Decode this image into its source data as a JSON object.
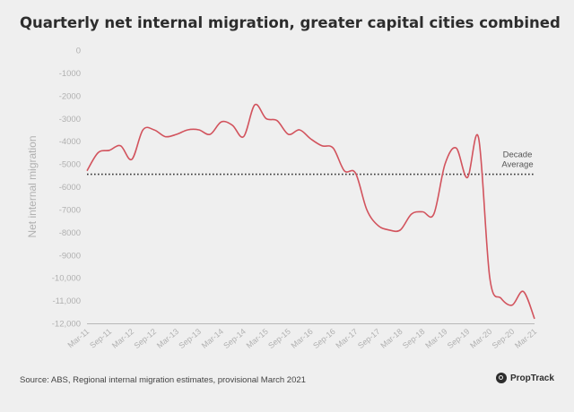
{
  "chart_data": {
    "type": "line",
    "title": "Quarterly net internal migration, greater capital cities combined",
    "ylabel": "Net internal migration",
    "xlabel": "",
    "ylim": [
      -12000,
      0
    ],
    "yticks": [
      0,
      -1000,
      -2000,
      -3000,
      -4000,
      -5000,
      -6000,
      -7000,
      -8000,
      -9000,
      -10000,
      -11000,
      -12000
    ],
    "ytick_labels": [
      "0",
      "-1000",
      "-2000",
      "-3000",
      "-4000",
      "-5000",
      "-6000",
      "-7000",
      "-8000",
      "-9000",
      "-10,000",
      "-11,000",
      "-12,000"
    ],
    "xtick_labels": [
      "Mar-11",
      "Sep-11",
      "Mar-12",
      "Sep-12",
      "Mar-13",
      "Sep-13",
      "Mar-14",
      "Sep-14",
      "Mar-15",
      "Sep-15",
      "Mar-16",
      "Sep-16",
      "Mar-17",
      "Sep-17",
      "Mar-18",
      "Sep-18",
      "Mar-19",
      "Sep-19",
      "Mar-20",
      "Sep-20",
      "Mar-21"
    ],
    "grid": false,
    "series": [
      {
        "color": "#d2535d",
        "x": [
          "Mar-11",
          "Jun-11",
          "Sep-11",
          "Dec-11",
          "Mar-12",
          "Jun-12",
          "Sep-12",
          "Dec-12",
          "Mar-13",
          "Jun-13",
          "Sep-13",
          "Dec-13",
          "Mar-14",
          "Jun-14",
          "Sep-14",
          "Dec-14",
          "Mar-15",
          "Jun-15",
          "Sep-15",
          "Dec-15",
          "Mar-16",
          "Jun-16",
          "Sep-16",
          "Dec-16",
          "Mar-17",
          "Jun-17",
          "Sep-17",
          "Dec-17",
          "Mar-18",
          "Jun-18",
          "Sep-18",
          "Dec-18",
          "Mar-19",
          "Jun-19",
          "Sep-19",
          "Dec-19",
          "Mar-20",
          "Jun-20",
          "Sep-20",
          "Dec-20",
          "Mar-21"
        ],
        "values": [
          -5300,
          -4500,
          -4400,
          -4200,
          -4800,
          -3500,
          -3500,
          -3800,
          -3700,
          -3500,
          -3500,
          -3700,
          -3150,
          -3300,
          -3800,
          -2400,
          -3000,
          -3100,
          -3700,
          -3500,
          -3900,
          -4200,
          -4300,
          -5300,
          -5400,
          -7000,
          -7700,
          -7900,
          -7900,
          -7200,
          -7100,
          -7200,
          -5000,
          -4300,
          -5600,
          -3850,
          -10000,
          -10900,
          -11200,
          -10600,
          -11800
        ]
      }
    ],
    "reference_line": {
      "value": -5450,
      "label_lines": [
        "Decade",
        "Average"
      ],
      "style": "dotted"
    }
  },
  "footer": {
    "source": "Source: ABS, Regional internal migration estimates, provisional March 2021",
    "brand": "PropTrack"
  },
  "colors": {
    "background": "#efefef",
    "line": "#d2535d",
    "reference": "#333333",
    "axis": "#b8b8b8",
    "tick_text": "#b0b0b0"
  }
}
